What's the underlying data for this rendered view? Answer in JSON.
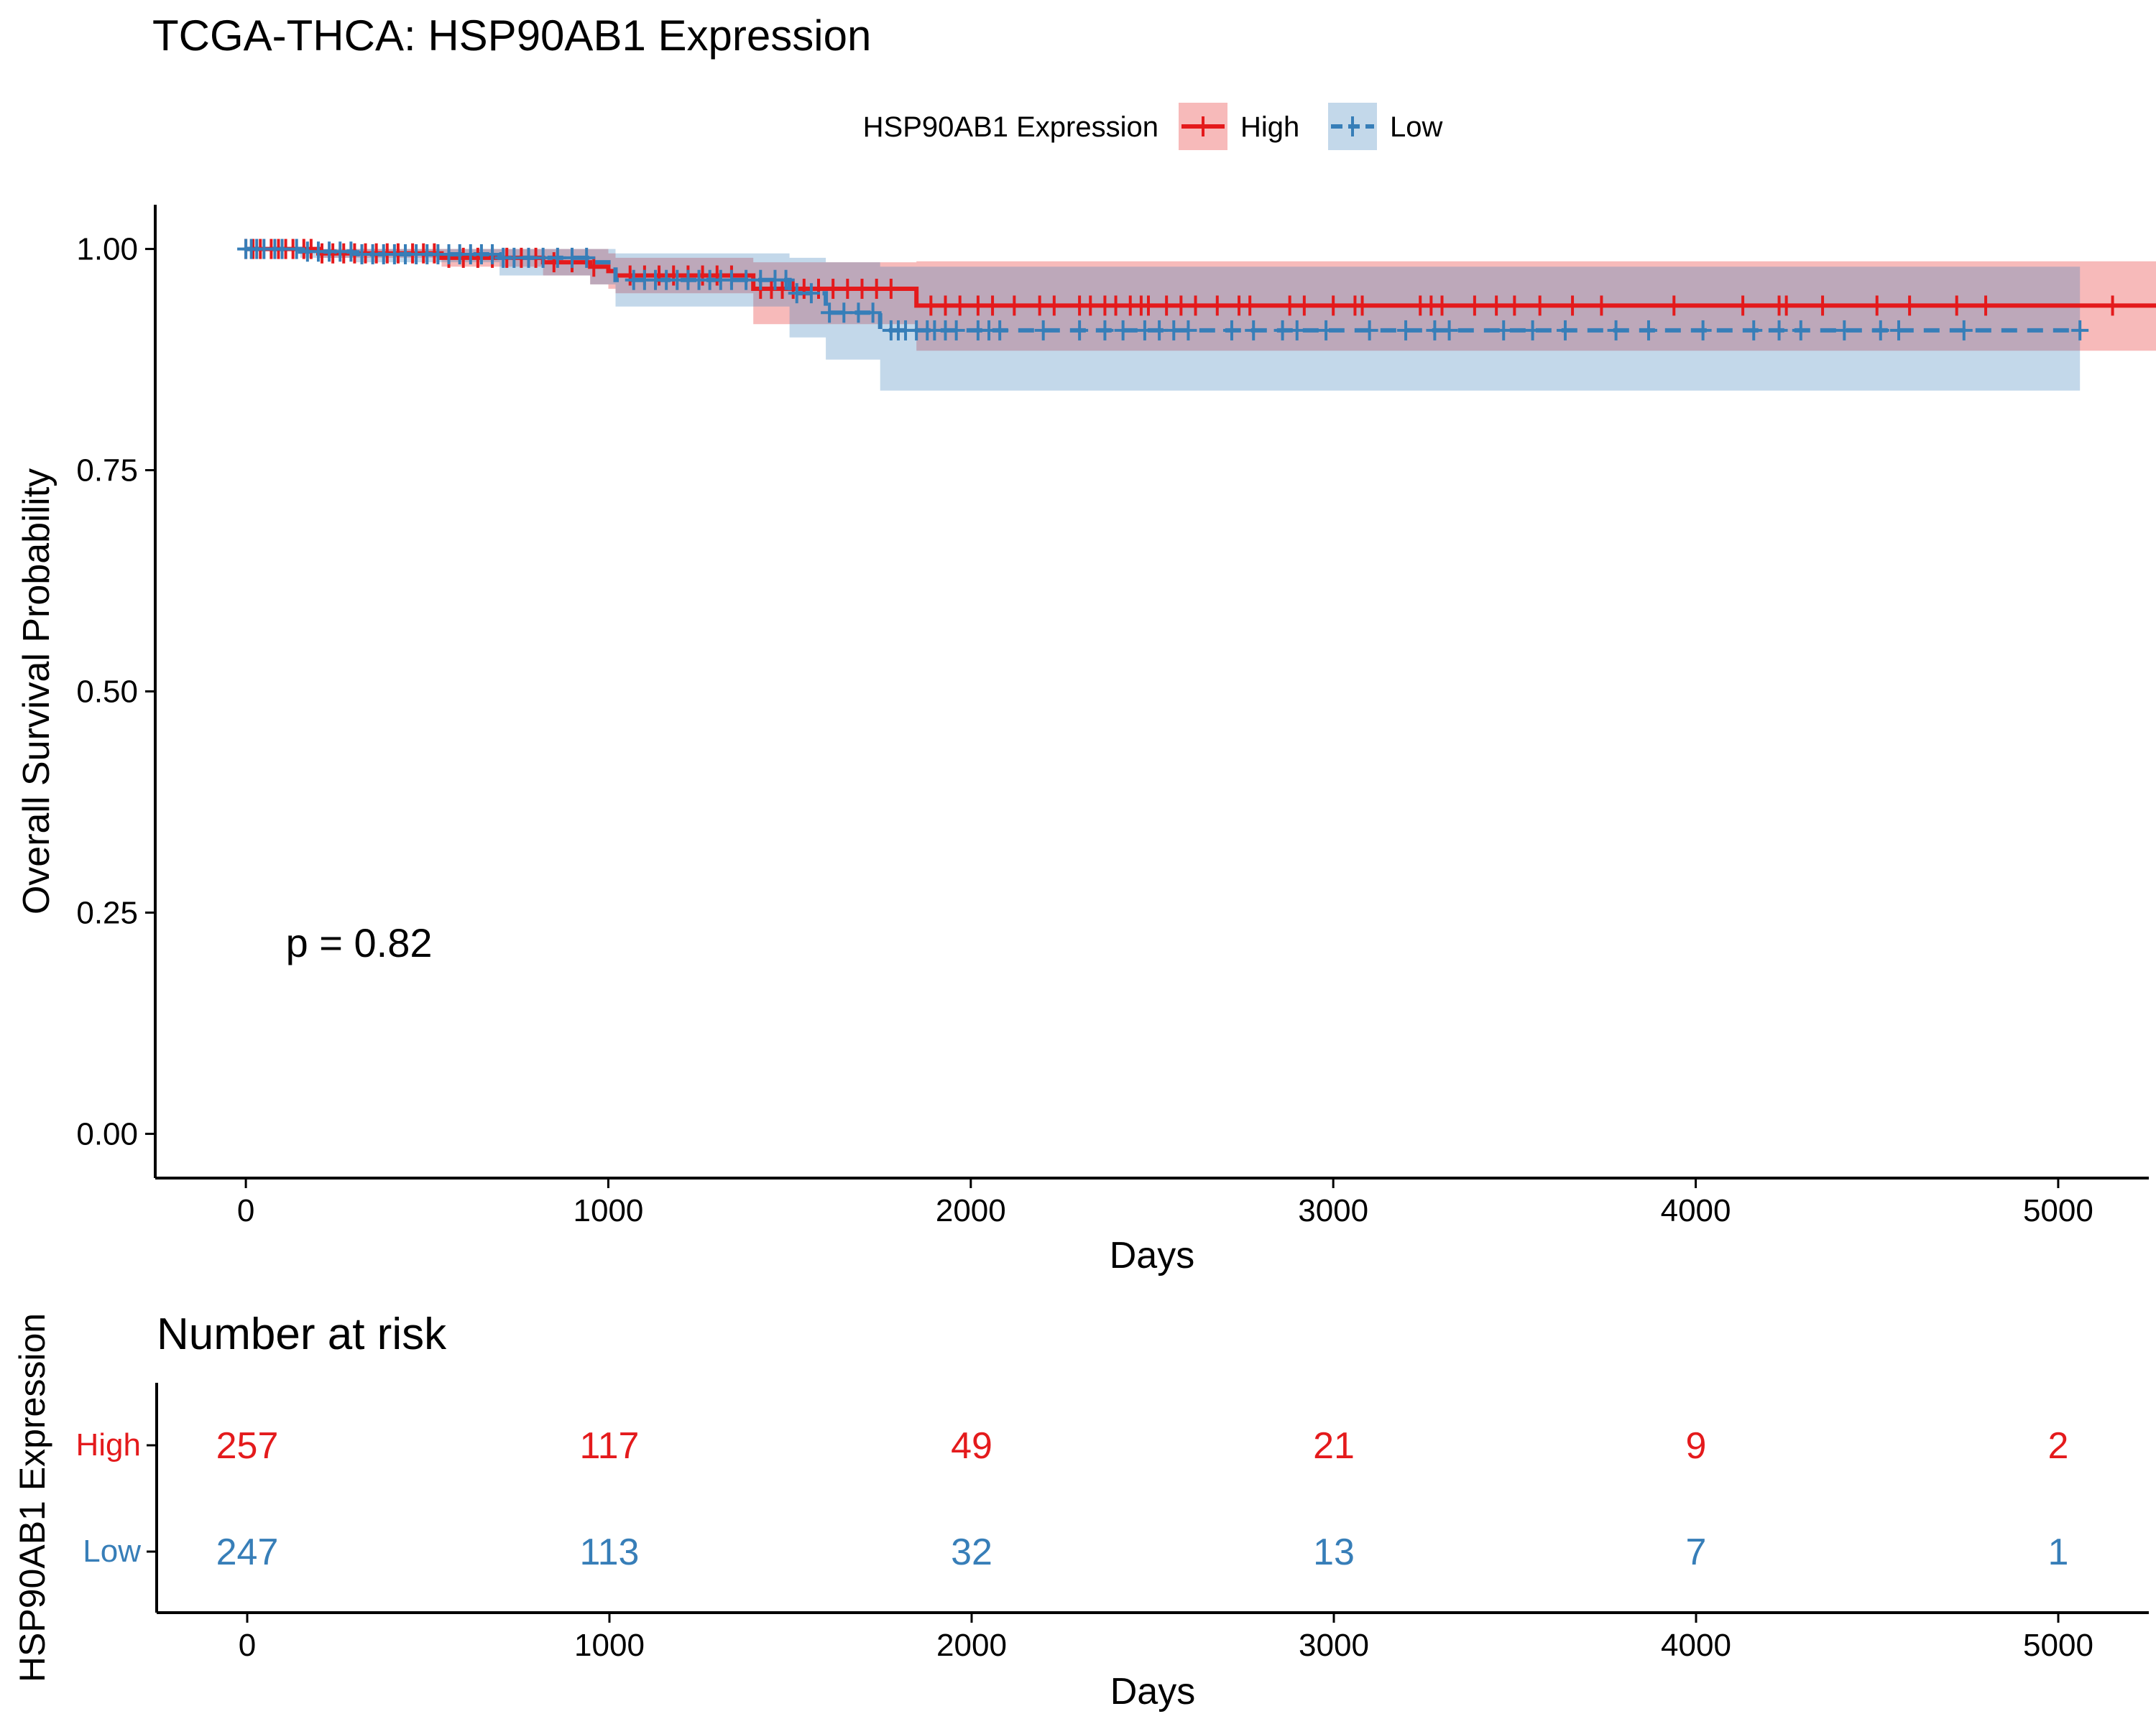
{
  "chart_data": [
    {
      "type": "line",
      "subtype": "kaplan-meier survival curve",
      "title": "TCGA-THCA: HSP90AB1 Expression",
      "xlabel": "Days",
      "ylabel": "Overall Survival Probability",
      "xlim": [
        -250,
        5250
      ],
      "ylim": [
        -0.05,
        1.05
      ],
      "xticks": [
        0,
        1000,
        2000,
        3000,
        4000,
        5000
      ],
      "yticks": [
        0.0,
        0.25,
        0.5,
        0.75,
        1.0
      ],
      "ytick_labels": [
        "0.00",
        "0.25",
        "0.50",
        "0.75",
        "1.00"
      ],
      "grid": false,
      "legend": {
        "title": "HSP90AB1 Expression",
        "position": "top",
        "entries": [
          "High",
          "Low"
        ]
      },
      "annotation": "p = 0.82",
      "annotation_position": {
        "x": 110,
        "y": 0.2
      },
      "series": [
        {
          "name": "High",
          "color": "#e41a1c",
          "linestyle": "solid",
          "steps": [
            [
              0,
              1.0
            ],
            [
              200,
              0.995
            ],
            [
              540,
              0.99
            ],
            [
              820,
              0.985
            ],
            [
              950,
              0.98
            ],
            [
              1000,
              0.975
            ],
            [
              1020,
              0.97
            ],
            [
              1400,
              0.955
            ],
            [
              1850,
              0.936
            ],
            [
              5300,
              0.936
            ]
          ],
          "ci_band": [
            [
              0,
              1.0,
              1.0
            ],
            [
              200,
              0.99,
              1.0
            ],
            [
              540,
              0.98,
              1.0
            ],
            [
              820,
              0.97,
              1.0
            ],
            [
              950,
              0.96,
              1.0
            ],
            [
              1000,
              0.955,
              0.995
            ],
            [
              1020,
              0.95,
              0.99
            ],
            [
              1400,
              0.915,
              0.985
            ],
            [
              1850,
              0.885,
              0.986
            ],
            [
              5300,
              0.885,
              0.986
            ]
          ],
          "censor_x": [
            0,
            20,
            40,
            70,
            90,
            110,
            130,
            160,
            180,
            210,
            240,
            270,
            300,
            330,
            360,
            390,
            420,
            460,
            490,
            520,
            560,
            600,
            640,
            680,
            720,
            760,
            800,
            850,
            900,
            960,
            1060,
            1100,
            1140,
            1180,
            1220,
            1260,
            1300,
            1340,
            1420,
            1450,
            1480,
            1510,
            1540,
            1580,
            1620,
            1660,
            1700,
            1740,
            1780,
            1890,
            1930,
            1970,
            2020,
            2060,
            2120,
            2190,
            2230,
            2300,
            2330,
            2370,
            2400,
            2440,
            2470,
            2490,
            2540,
            2580,
            2620,
            2680,
            2740,
            2770,
            2880,
            2920,
            3000,
            3060,
            3080,
            3240,
            3270,
            3300,
            3390,
            3450,
            3500,
            3570,
            3660,
            3740,
            3940,
            4130,
            4230,
            4250,
            4350,
            4500,
            4590,
            4720,
            4800,
            5150
          ]
        },
        {
          "name": "Low",
          "color": "#377eb8",
          "linestyle": "dashed",
          "steps": [
            [
              0,
              1.0
            ],
            [
              150,
              0.997
            ],
            [
              300,
              0.994
            ],
            [
              700,
              0.99
            ],
            [
              950,
              0.985
            ],
            [
              1020,
              0.965
            ],
            [
              1500,
              0.95
            ],
            [
              1600,
              0.928
            ],
            [
              1750,
              0.908
            ],
            [
              5060,
              0.908
            ]
          ],
          "ci_band": [
            [
              0,
              1.0,
              1.0
            ],
            [
              150,
              0.99,
              1.0
            ],
            [
              300,
              0.985,
              1.0
            ],
            [
              700,
              0.97,
              1.0
            ],
            [
              950,
              0.96,
              1.0
            ],
            [
              1020,
              0.935,
              0.995
            ],
            [
              1500,
              0.9,
              0.99
            ],
            [
              1600,
              0.875,
              0.985
            ],
            [
              1750,
              0.84,
              0.98
            ],
            [
              5060,
              0.84,
              0.98
            ]
          ],
          "censor_x": [
            0,
            15,
            30,
            50,
            80,
            100,
            140,
            170,
            200,
            230,
            260,
            290,
            320,
            350,
            380,
            410,
            440,
            470,
            500,
            530,
            560,
            590,
            620,
            650,
            680,
            710,
            740,
            780,
            820,
            860,
            900,
            940,
            1070,
            1100,
            1130,
            1160,
            1190,
            1220,
            1250,
            1280,
            1310,
            1340,
            1380,
            1420,
            1460,
            1490,
            1520,
            1560,
            1610,
            1650,
            1690,
            1730,
            1780,
            1800,
            1820,
            1850,
            1880,
            1900,
            1930,
            1960,
            2020,
            2050,
            2080,
            2200,
            2300,
            2370,
            2420,
            2480,
            2520,
            2560,
            2600,
            2720,
            2780,
            2860,
            2900,
            2980,
            3100,
            3200,
            3280,
            3320,
            3470,
            3550,
            3640,
            3780,
            3870,
            4020,
            4160,
            4230,
            4290,
            4410,
            4510,
            4560,
            4740,
            5060
          ]
        }
      ]
    },
    {
      "type": "table",
      "title": "Number at risk",
      "xlabel": "Days",
      "ylabel": "HSP90AB1 Expression",
      "xlim": [
        -250,
        5250
      ],
      "xticks": [
        0,
        1000,
        2000,
        3000,
        4000,
        5000
      ],
      "x": [
        0,
        1000,
        2000,
        3000,
        4000,
        5000
      ],
      "rows": [
        {
          "name": "High",
          "color": "#e41a1c",
          "values": [
            257,
            117,
            49,
            21,
            9,
            2
          ]
        },
        {
          "name": "Low",
          "color": "#377eb8",
          "values": [
            247,
            113,
            32,
            13,
            7,
            1
          ]
        }
      ]
    }
  ]
}
